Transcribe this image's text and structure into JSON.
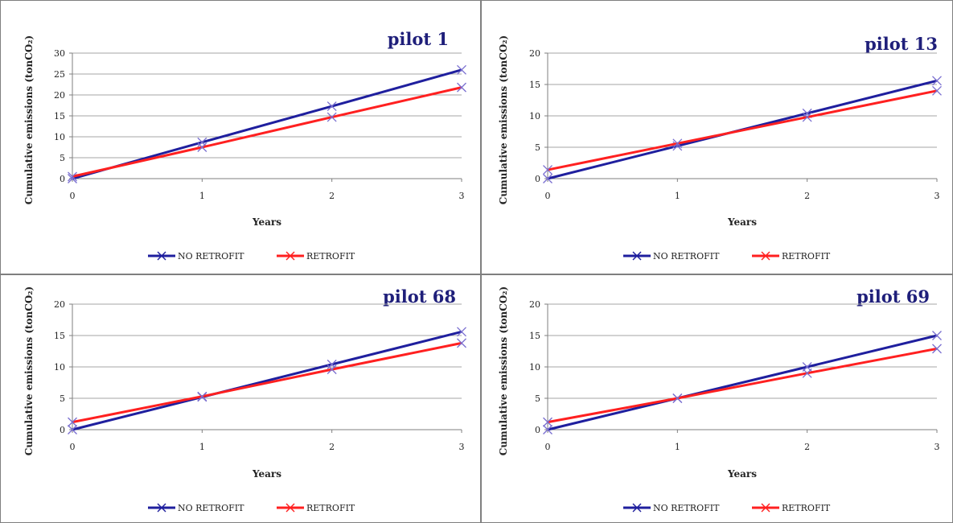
{
  "colors": {
    "no_retrofit": "#1f1f9e",
    "retrofit": "#ff2020",
    "grid": "#a6a6a6",
    "border": "#7f7f7f"
  },
  "chart_data": [
    {
      "type": "line",
      "title": "pilot 1",
      "xlabel": "Years",
      "ylabel": "Cumulative emissions (tonCO₂)",
      "x": [
        0,
        1,
        2,
        3
      ],
      "ylim": [
        0,
        30
      ],
      "yticks": [
        0,
        5,
        10,
        15,
        20,
        25,
        30
      ],
      "series": [
        {
          "name": "NO RETROFIT",
          "values": [
            0,
            8.7,
            17.3,
            26
          ],
          "color": "#1f1f9e"
        },
        {
          "name": "RETROFIT",
          "values": [
            0.5,
            7.5,
            14.7,
            21.8
          ],
          "color": "#ff2020"
        }
      ],
      "legend": "bottom"
    },
    {
      "type": "line",
      "title": "pilot 13",
      "xlabel": "Years",
      "ylabel": "Cumulative emissions (tonCO₂)",
      "x": [
        0,
        1,
        2,
        3
      ],
      "ylim": [
        0,
        20
      ],
      "yticks": [
        0,
        5,
        10,
        15,
        20
      ],
      "series": [
        {
          "name": "NO RETROFIT",
          "values": [
            0,
            5.2,
            10.4,
            15.6
          ],
          "color": "#1f1f9e"
        },
        {
          "name": "RETROFIT",
          "values": [
            1.4,
            5.6,
            9.8,
            14
          ],
          "color": "#ff2020"
        }
      ],
      "legend": "bottom"
    },
    {
      "type": "line",
      "title": "pilot 68",
      "xlabel": "Years",
      "ylabel": "Cumulative emissions (tonCO₂)",
      "x": [
        0,
        1,
        2,
        3
      ],
      "ylim": [
        0,
        20
      ],
      "yticks": [
        0,
        5,
        10,
        15,
        20
      ],
      "series": [
        {
          "name": "NO RETROFIT",
          "values": [
            0,
            5.2,
            10.4,
            15.6
          ],
          "color": "#1f1f9e"
        },
        {
          "name": "RETROFIT",
          "values": [
            1.2,
            5.3,
            9.6,
            13.8
          ],
          "color": "#ff2020"
        }
      ],
      "legend": "bottom"
    },
    {
      "type": "line",
      "title": "pilot 69",
      "xlabel": "Years",
      "ylabel": "Cumulative emissions (tonCO₂)",
      "x": [
        0,
        1,
        2,
        3
      ],
      "ylim": [
        0,
        20
      ],
      "yticks": [
        0,
        5,
        10,
        15,
        20
      ],
      "series": [
        {
          "name": "NO RETROFIT",
          "values": [
            0,
            5,
            10,
            15
          ],
          "color": "#1f1f9e"
        },
        {
          "name": "RETROFIT",
          "values": [
            1.2,
            5,
            9,
            12.9
          ],
          "color": "#ff2020"
        }
      ],
      "legend": "bottom"
    }
  ]
}
